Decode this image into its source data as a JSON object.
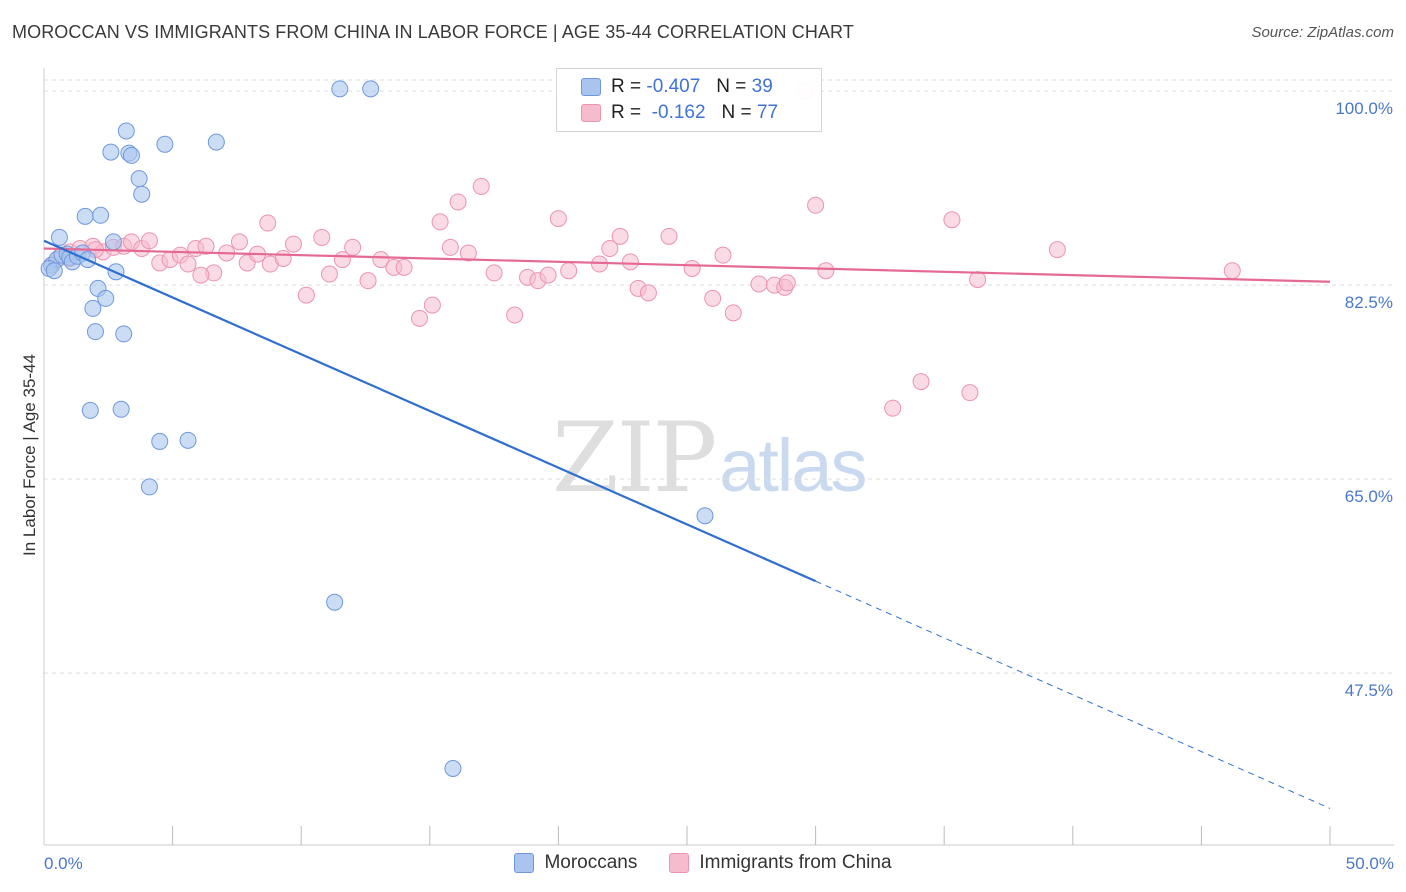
{
  "header": {
    "title": "MOROCCAN VS IMMIGRANTS FROM CHINA IN LABOR FORCE | AGE 35-44 CORRELATION CHART",
    "source": "Source: ZipAtlas.com"
  },
  "watermark": {
    "zip": "ZIP",
    "atlas": "atlas"
  },
  "legend": {
    "rows": [
      {
        "r_label": "R =",
        "r_value": "-0.407",
        "n_label": "N =",
        "n_value": "39"
      },
      {
        "r_label": "R =",
        "r_value": "-0.162",
        "n_label": "N =",
        "n_value": "77"
      }
    ]
  },
  "bottom_legend": {
    "series1": "Moroccans",
    "series2": "Immigrants from China"
  },
  "chart_data": {
    "type": "scatter",
    "title": "MOROCCAN VS IMMIGRANTS FROM CHINA IN LABOR FORCE | AGE 35-44 CORRELATION CHART",
    "ylabel": "In Labor Force | Age 35-44",
    "xlabel": "",
    "xlim": [
      0,
      50
    ],
    "ylim": [
      32,
      101
    ],
    "x_tick_labels": [
      "0.0%",
      "50.0%"
    ],
    "y_ticks": [
      47.5,
      65.0,
      82.5,
      100.0
    ],
    "y_tick_labels": [
      "47.5%",
      "65.0%",
      "82.5%",
      "100.0%"
    ],
    "grid": "horizontal dashed",
    "legend_position": "top-center",
    "colors": {
      "moroccans_fill": "#a9c4ee",
      "moroccans_stroke": "#6f98dc",
      "moroccans_line": "#2f6fd0",
      "china_fill": "#f6bccd",
      "china_stroke": "#ec94b0",
      "china_line": "#e46a93"
    },
    "series": [
      {
        "name": "Moroccans",
        "points": [
          [
            0.3,
            84.3
          ],
          [
            0.5,
            84.8
          ],
          [
            0.7,
            85.2
          ],
          [
            0.9,
            85.3
          ],
          [
            1.0,
            85.0
          ],
          [
            1.1,
            84.6
          ],
          [
            1.3,
            85.1
          ],
          [
            1.5,
            85.4
          ],
          [
            1.7,
            84.8
          ],
          [
            0.6,
            86.8
          ],
          [
            1.6,
            88.7
          ],
          [
            2.2,
            88.8
          ],
          [
            2.7,
            86.4
          ],
          [
            2.8,
            83.7
          ],
          [
            2.1,
            82.2
          ],
          [
            2.4,
            81.3
          ],
          [
            1.9,
            80.4
          ],
          [
            2.0,
            78.3
          ],
          [
            3.1,
            78.1
          ],
          [
            1.8,
            71.2
          ],
          [
            3.0,
            71.3
          ],
          [
            3.2,
            96.4
          ],
          [
            4.7,
            95.2
          ],
          [
            6.7,
            95.4
          ],
          [
            2.6,
            94.5
          ],
          [
            3.3,
            94.4
          ],
          [
            3.4,
            94.2
          ],
          [
            3.7,
            92.1
          ],
          [
            3.8,
            90.7
          ],
          [
            11.5,
            100.2
          ],
          [
            12.7,
            100.2
          ],
          [
            4.5,
            68.4
          ],
          [
            5.6,
            68.5
          ],
          [
            4.1,
            64.3
          ],
          [
            25.7,
            61.7
          ],
          [
            11.3,
            53.9
          ],
          [
            15.9,
            38.9
          ],
          [
            0.2,
            84.0
          ],
          [
            0.4,
            83.8
          ]
        ],
        "trend": {
          "x": [
            0,
            30
          ],
          "y": [
            86.5,
            55.8
          ]
        },
        "trend_extrapolated": {
          "x": [
            30,
            50
          ],
          "y": [
            55.8,
            35.3
          ]
        }
      },
      {
        "name": "Immigrants from China",
        "points": [
          [
            0.3,
            84.3
          ],
          [
            0.6,
            85.0
          ],
          [
            1.0,
            85.5
          ],
          [
            1.4,
            85.8
          ],
          [
            1.9,
            86.0
          ],
          [
            2.3,
            85.5
          ],
          [
            2.7,
            85.9
          ],
          [
            3.1,
            86.0
          ],
          [
            3.4,
            86.4
          ],
          [
            3.8,
            85.8
          ],
          [
            4.1,
            86.5
          ],
          [
            4.5,
            84.5
          ],
          [
            4.9,
            84.8
          ],
          [
            5.3,
            85.2
          ],
          [
            5.6,
            84.4
          ],
          [
            5.9,
            85.8
          ],
          [
            6.3,
            86.0
          ],
          [
            6.6,
            83.6
          ],
          [
            7.1,
            85.4
          ],
          [
            7.6,
            86.4
          ],
          [
            7.9,
            84.5
          ],
          [
            8.3,
            85.3
          ],
          [
            8.8,
            84.4
          ],
          [
            9.3,
            84.9
          ],
          [
            9.7,
            86.2
          ],
          [
            10.2,
            81.6
          ],
          [
            10.8,
            86.8
          ],
          [
            11.1,
            83.5
          ],
          [
            11.6,
            84.8
          ],
          [
            12.0,
            85.9
          ],
          [
            12.6,
            82.9
          ],
          [
            13.1,
            84.8
          ],
          [
            13.6,
            84.1
          ],
          [
            14.0,
            84.1
          ],
          [
            14.6,
            79.5
          ],
          [
            15.1,
            80.7
          ],
          [
            15.4,
            88.2
          ],
          [
            15.8,
            85.9
          ],
          [
            16.1,
            90.0
          ],
          [
            16.5,
            85.4
          ],
          [
            17.0,
            91.4
          ],
          [
            17.5,
            83.6
          ],
          [
            18.3,
            79.8
          ],
          [
            18.8,
            83.2
          ],
          [
            19.2,
            82.9
          ],
          [
            19.6,
            83.4
          ],
          [
            20.0,
            88.5
          ],
          [
            20.4,
            83.8
          ],
          [
            21.6,
            84.4
          ],
          [
            22.0,
            85.8
          ],
          [
            22.4,
            86.9
          ],
          [
            22.8,
            84.6
          ],
          [
            23.1,
            82.2
          ],
          [
            23.5,
            81.8
          ],
          [
            24.3,
            86.9
          ],
          [
            25.2,
            84.0
          ],
          [
            26.0,
            81.3
          ],
          [
            26.4,
            85.2
          ],
          [
            26.8,
            80.0
          ],
          [
            27.8,
            82.6
          ],
          [
            28.4,
            82.5
          ],
          [
            28.8,
            82.3
          ],
          [
            28.9,
            82.7
          ],
          [
            30.0,
            89.7
          ],
          [
            30.4,
            83.8
          ],
          [
            35.3,
            88.4
          ],
          [
            36.3,
            83.0
          ],
          [
            34.1,
            73.8
          ],
          [
            36.0,
            72.8
          ],
          [
            33.0,
            71.4
          ],
          [
            39.4,
            85.7
          ],
          [
            46.2,
            83.8
          ],
          [
            8.7,
            88.1
          ],
          [
            6.1,
            83.4
          ],
          [
            1.0,
            84.9
          ],
          [
            2.0,
            85.7
          ],
          [
            29.6,
            100.0
          ]
        ],
        "trend": {
          "x": [
            0,
            50
          ],
          "y": [
            85.8,
            82.8
          ]
        }
      }
    ]
  }
}
